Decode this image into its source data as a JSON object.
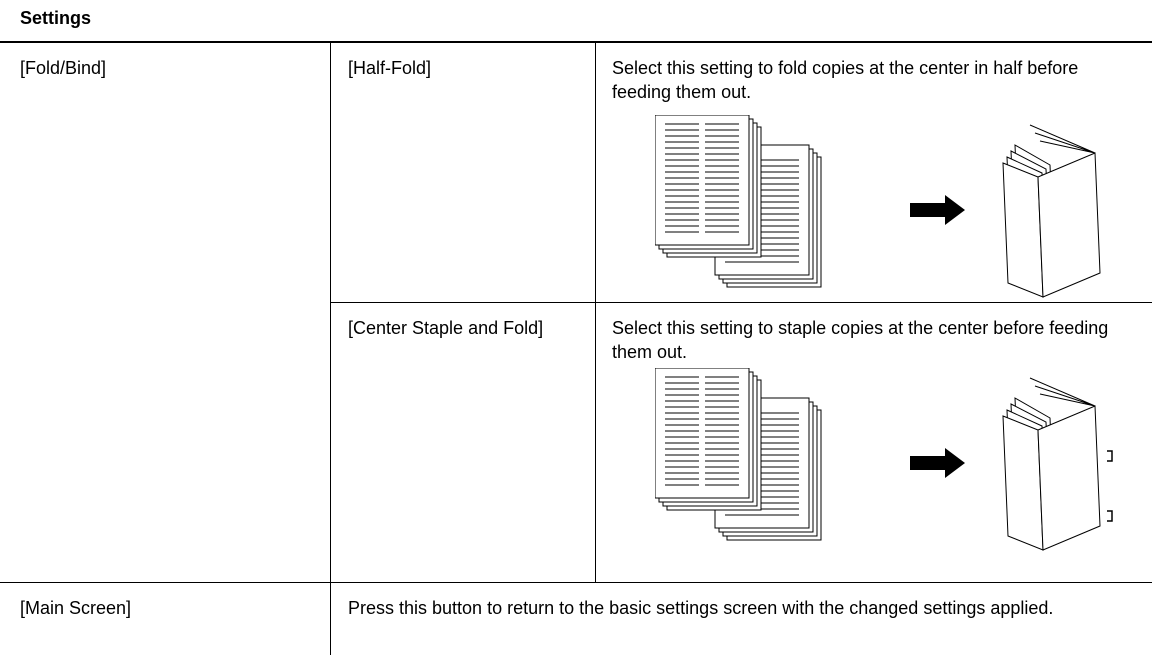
{
  "header": {
    "title": "Settings"
  },
  "table": {
    "rows": [
      {
        "label": "[Fold/Bind]",
        "options": [
          {
            "label": "[Half-Fold]",
            "description": "Select this setting to fold copies at the center in half before feeding them out."
          },
          {
            "label": "[Center Staple and Fold]",
            "description": "Select this setting to staple copies at the center before feeding them out."
          }
        ]
      },
      {
        "label": "[Main Screen]",
        "description": "Press this button to return to the basic settings screen with the changed settings applied."
      }
    ]
  }
}
